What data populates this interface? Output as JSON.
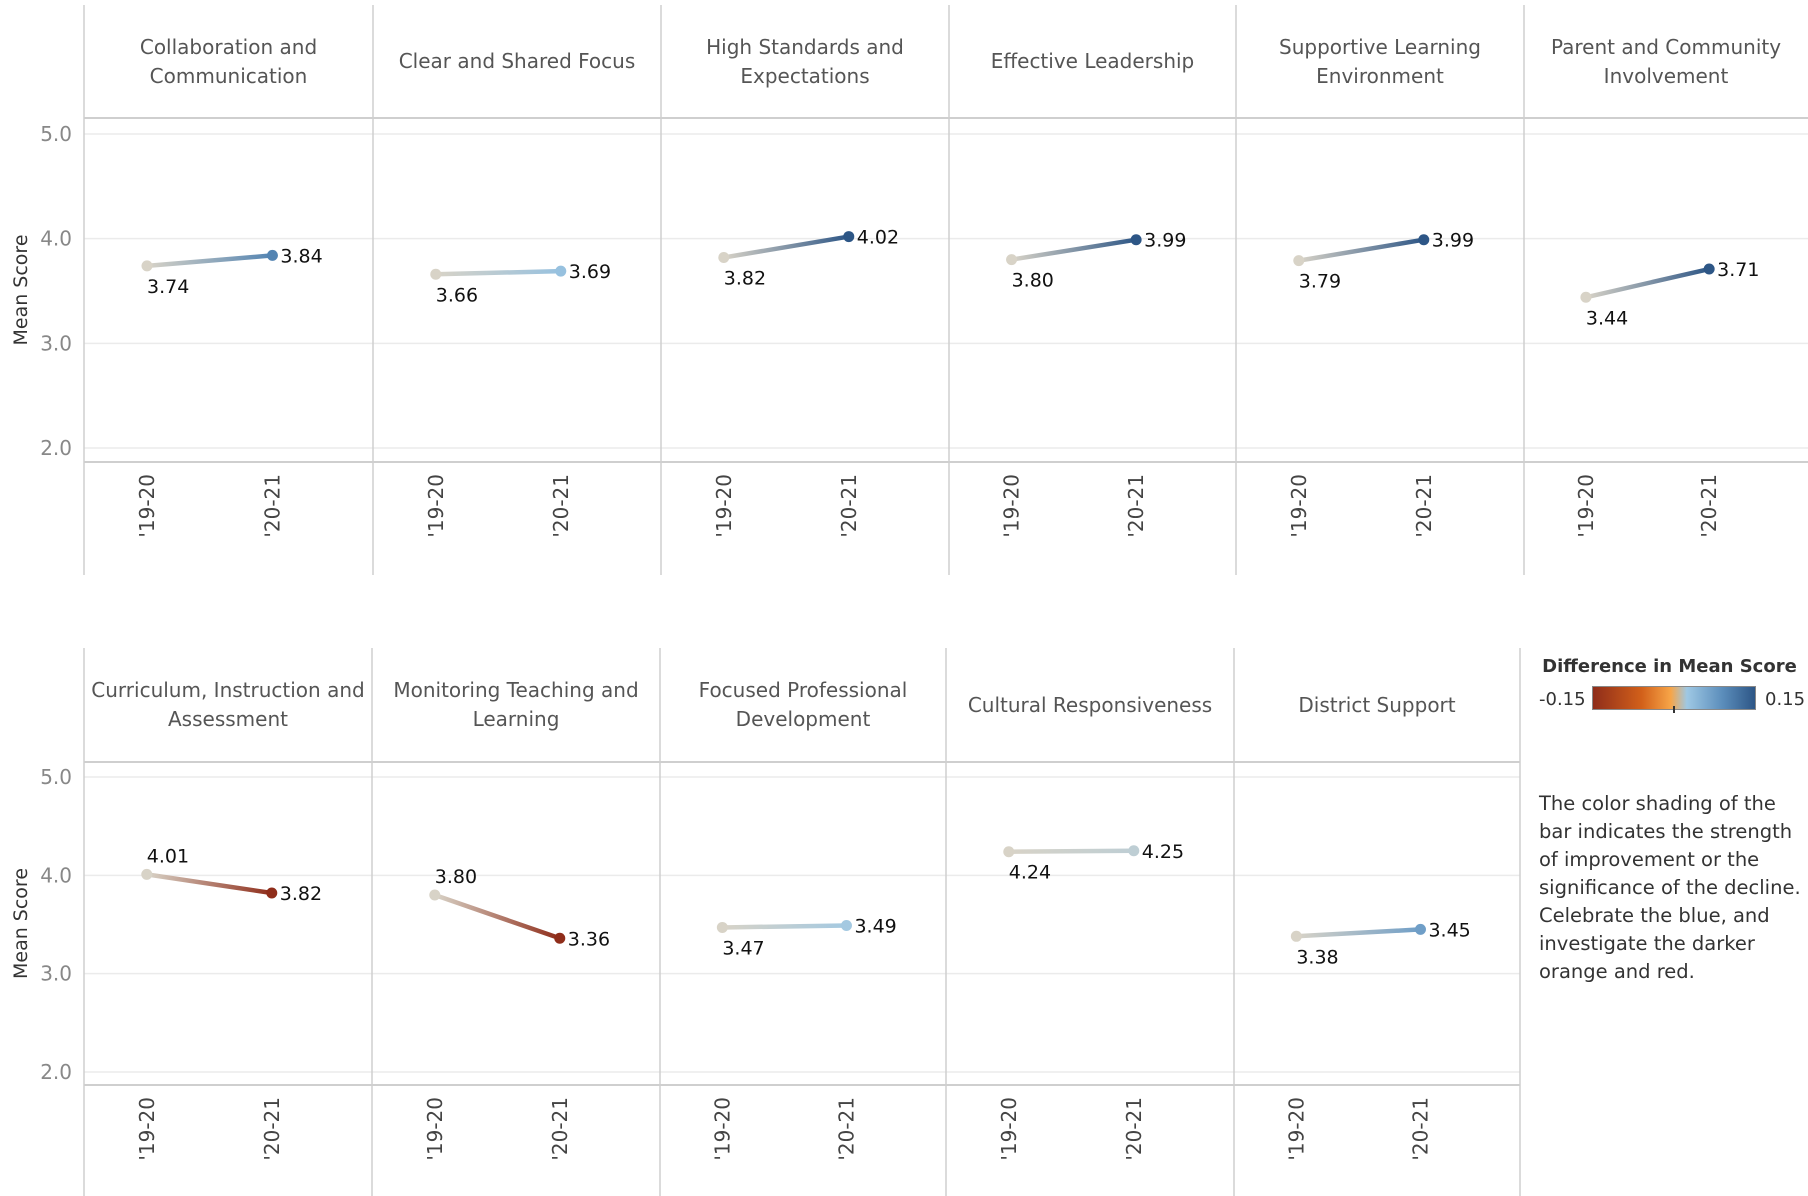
{
  "chart_data": {
    "type": "line",
    "ylabel": "Mean Score",
    "y_ticks": [
      "5.0",
      "4.0",
      "3.0",
      "2.0"
    ],
    "ylim": [
      2.0,
      5.0
    ],
    "x_categories": [
      "'19-20",
      "'20-21"
    ],
    "grid": "horizontal gridlines at each tick",
    "panels": [
      {
        "title": "Collaboration and Communication",
        "values": [
          3.74,
          3.84
        ],
        "labels": [
          "3.74",
          "3.84"
        ]
      },
      {
        "title": "Clear and Shared Focus",
        "values": [
          3.66,
          3.69
        ],
        "labels": [
          "3.66",
          "3.69"
        ]
      },
      {
        "title": "High Standards and Expectations",
        "values": [
          3.82,
          4.02
        ],
        "labels": [
          "3.82",
          "4.02"
        ]
      },
      {
        "title": "Effective Leadership",
        "values": [
          3.8,
          3.99
        ],
        "labels": [
          "3.80",
          "3.99"
        ]
      },
      {
        "title": "Supportive Learning Environment",
        "values": [
          3.79,
          3.99
        ],
        "labels": [
          "3.79",
          "3.99"
        ]
      },
      {
        "title": "Parent and Community Involvement",
        "values": [
          3.44,
          3.71
        ],
        "labels": [
          "3.44",
          "3.71"
        ]
      },
      {
        "title": "Curriculum, Instruction and Assessment",
        "values": [
          4.01,
          3.82
        ],
        "labels": [
          "4.01",
          "3.82"
        ]
      },
      {
        "title": "Monitoring Teaching and Learning",
        "values": [
          3.8,
          3.36
        ],
        "labels": [
          "3.80",
          "3.36"
        ]
      },
      {
        "title": "Focused Professional Development",
        "values": [
          3.47,
          3.49
        ],
        "labels": [
          "3.47",
          "3.49"
        ]
      },
      {
        "title": "Cultural Responsiveness",
        "values": [
          4.24,
          4.25
        ],
        "labels": [
          "4.24",
          "4.25"
        ]
      },
      {
        "title": "District Support",
        "values": [
          3.38,
          3.45
        ],
        "labels": [
          "3.38",
          "3.45"
        ]
      }
    ],
    "legend": {
      "title": "Difference in Mean Score",
      "min_label": "-0.15",
      "max_label": "0.15",
      "range": [
        -0.15,
        0.15
      ],
      "placement": "bottom-right",
      "colors": {
        "negative_dark": "#8f2d1a",
        "negative": "#d2601a",
        "orange_light": "#f7a548",
        "neutral": "#d8d3c7",
        "positive_light": "#9ec8e4",
        "positive": "#5b8dbb",
        "positive_dark": "#2d5686"
      }
    },
    "note": "The color shading of the bar indicates the strength of improvement or the significance of the decline. Celebrate the blue, and investigate the darker orange and red."
  }
}
